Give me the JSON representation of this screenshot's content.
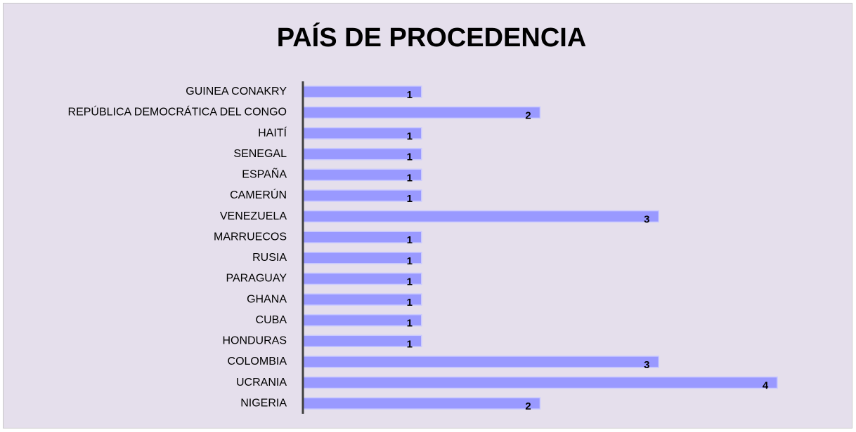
{
  "chart_data": {
    "type": "barh",
    "title": "PAÍS DE PROCEDENCIA",
    "categories": [
      "GUINEA CONAKRY",
      "REPÚBLICA DEMOCRÁTICA DEL CONGO",
      "HAITÍ",
      "SENEGAL",
      "ESPAÑA",
      "CAMERÚN",
      "VENEZUELA",
      "MARRUECOS",
      "RUSIA",
      "PARAGUAY",
      "GHANA",
      "CUBA",
      "HONDURAS",
      "COLOMBIA",
      "UCRANIA",
      "NIGERIA"
    ],
    "values": [
      1,
      2,
      1,
      1,
      1,
      1,
      3,
      1,
      1,
      1,
      1,
      1,
      1,
      3,
      4,
      2
    ],
    "color": "#9999ff"
  }
}
